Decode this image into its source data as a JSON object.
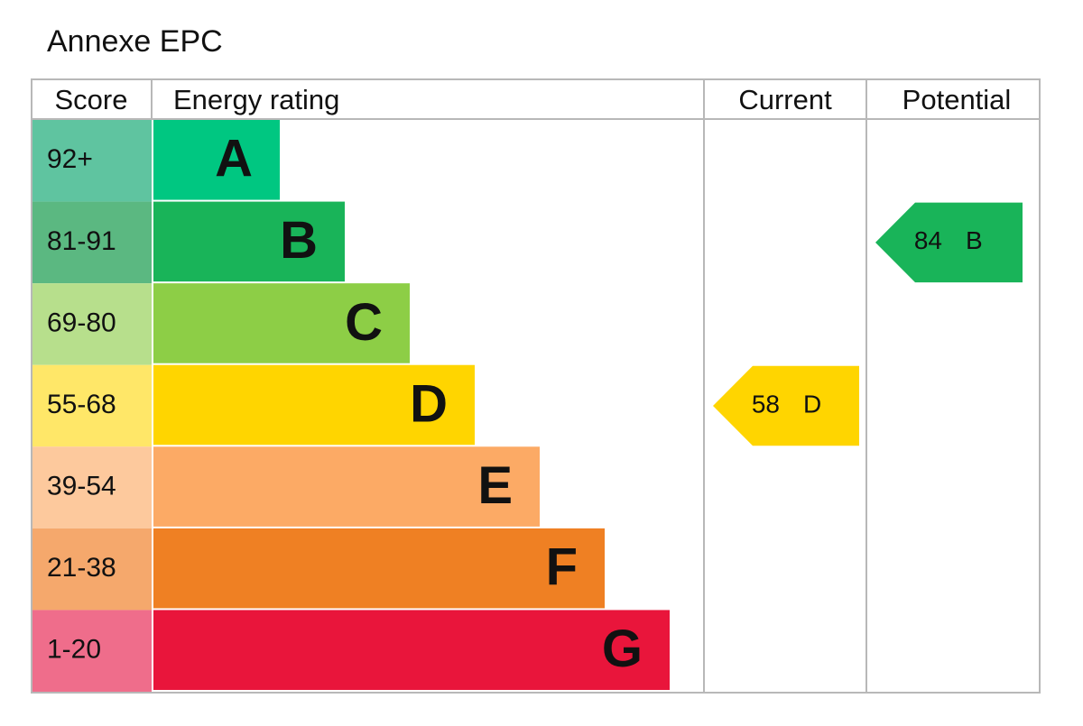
{
  "header": {
    "title": "Annexe EPC"
  },
  "table": {
    "columns": [
      "Score",
      "Energy rating",
      "Current",
      "Potential"
    ],
    "bands": [
      {
        "score": "92+",
        "letter": "A",
        "color": "#00c781",
        "score_color": "#5fc4a0"
      },
      {
        "score": "81-91",
        "letter": "B",
        "color": "#19b459",
        "score_color": "#5bb881"
      },
      {
        "score": "69-80",
        "letter": "C",
        "color": "#8dce46",
        "score_color": "#b7df8c"
      },
      {
        "score": "55-68",
        "letter": "D",
        "color": "#ffd500",
        "score_color": "#ffe768"
      },
      {
        "score": "39-54",
        "letter": "E",
        "color": "#fcaa65",
        "score_color": "#fdc99d"
      },
      {
        "score": "21-38",
        "letter": "F",
        "color": "#ef8023",
        "score_color": "#f5a86c"
      },
      {
        "score": "1-20",
        "letter": "G",
        "color": "#e9153b",
        "score_color": "#ef6d8b"
      }
    ]
  },
  "current": {
    "value": 58,
    "letter": "D"
  },
  "potential": {
    "value": 84,
    "letter": "B"
  }
}
